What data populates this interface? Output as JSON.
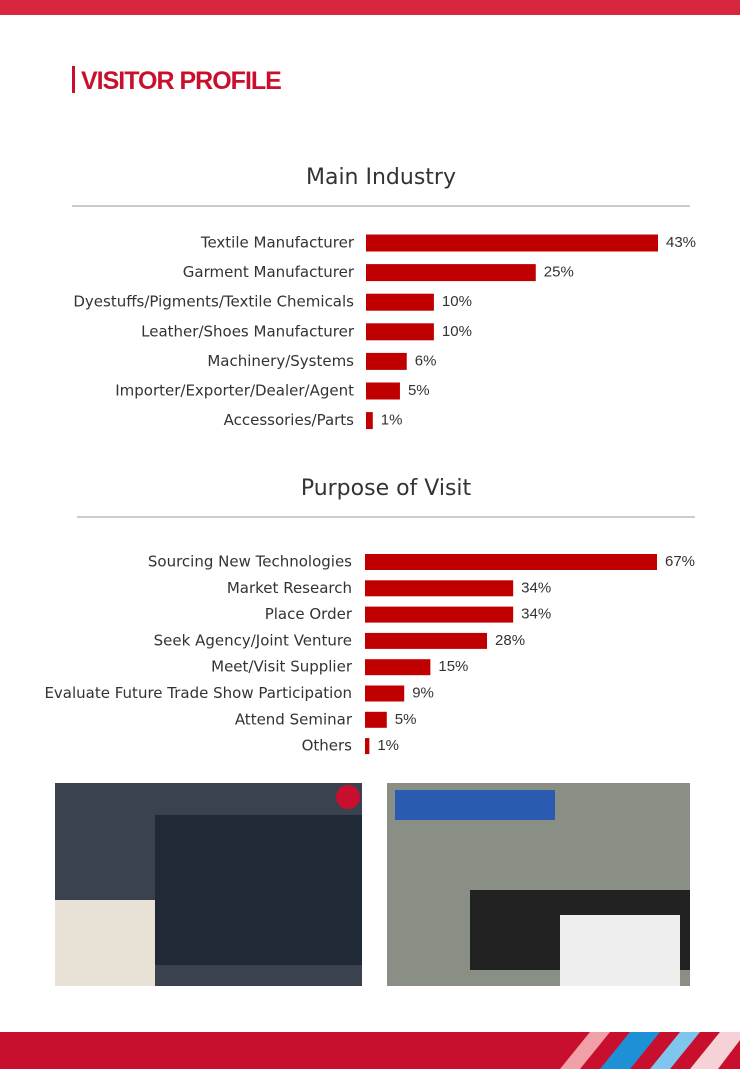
{
  "header": {
    "title": "VISITOR PROFILE"
  },
  "chart_data": [
    {
      "type": "bar",
      "orientation": "horizontal",
      "title": "Main Industry",
      "color": "#c00000",
      "categories": [
        "Textile Manufacturer",
        "Garment Manufacturer",
        "Dyestuffs/Pigments/Textile Chemicals",
        "Leather/Shoes Manufacturer",
        "Machinery/Systems",
        "Importer/Exporter/Dealer/Agent",
        "Accessories/Parts"
      ],
      "values": [
        43,
        25,
        10,
        10,
        6,
        5,
        1
      ],
      "value_labels": [
        "43%",
        "25%",
        "10%",
        "10%",
        "6%",
        "5%",
        "1%"
      ]
    },
    {
      "type": "bar",
      "orientation": "horizontal",
      "title": "Purpose of Visit",
      "color": "#c00000",
      "categories": [
        "Sourcing New Technologies",
        "Market Research",
        "Place Order",
        "Seek Agency/Joint Venture",
        "Meet/Visit Supplier",
        "Evaluate Future Trade Show Participation",
        "Attend Seminar",
        "Others"
      ],
      "values": [
        67,
        34,
        34,
        28,
        15,
        9,
        5,
        1
      ],
      "value_labels": [
        "67%",
        "34%",
        "34%",
        "28%",
        "15%",
        "9%",
        "5%",
        "1%"
      ]
    }
  ]
}
